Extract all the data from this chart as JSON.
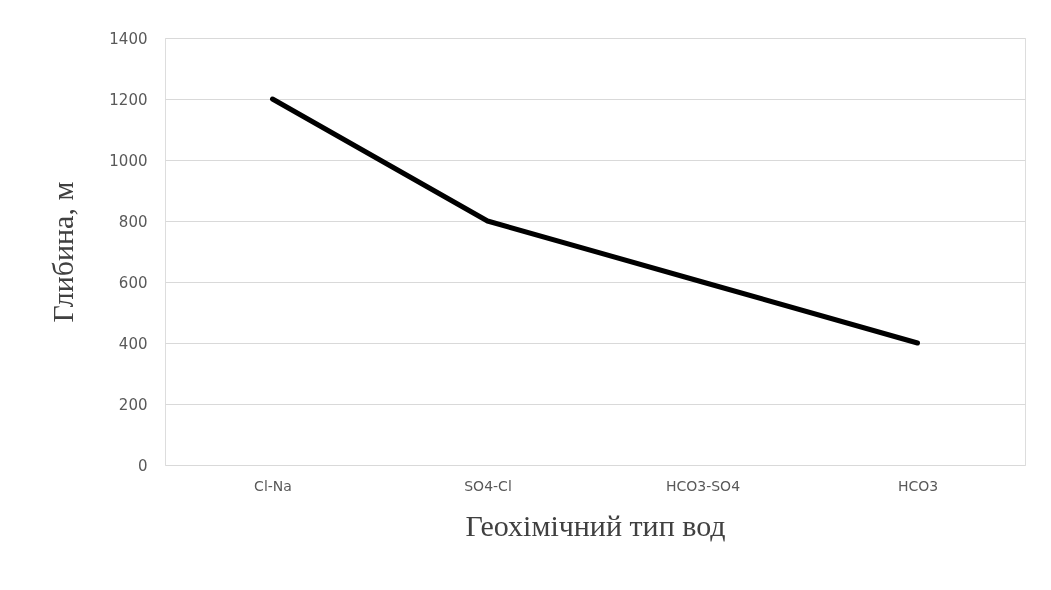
{
  "chart_data": {
    "type": "line",
    "xlabel": "Геохімічний тип вод",
    "ylabel": "Глибина, м",
    "categories": [
      "Cl-Na",
      "SO4-Cl",
      "HCO3-SO4",
      "HCO3"
    ],
    "series": [
      {
        "color": "#000000",
        "values": [
          1200,
          800,
          600,
          400
        ]
      }
    ],
    "ylim": [
      0,
      1400
    ],
    "yticks": [
      0,
      200,
      400,
      600,
      800,
      1000,
      1200,
      1400
    ],
    "grid": "y",
    "marker": "none",
    "line_style": "solid"
  }
}
